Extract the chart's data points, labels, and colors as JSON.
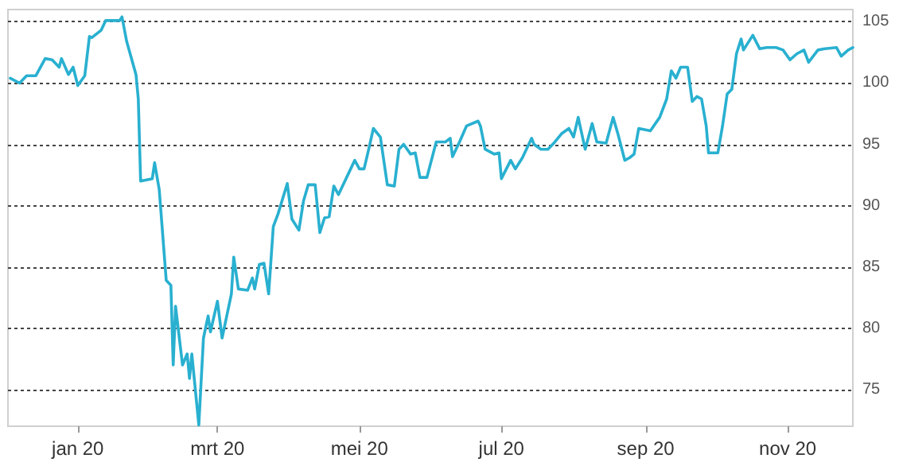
{
  "chart_data": {
    "type": "line",
    "marker": "none",
    "line_style": "solid",
    "grid": "y",
    "xlim": [
      "2019-12-02",
      "2020-11-29"
    ],
    "xticks": [
      {
        "value": "2020-01-01",
        "label": "jan 20"
      },
      {
        "value": "2020-03-01",
        "label": "mrt 20"
      },
      {
        "value": "2020-05-01",
        "label": "mei 20"
      },
      {
        "value": "2020-07-01",
        "label": "jul 20"
      },
      {
        "value": "2020-09-01",
        "label": "sep 20"
      },
      {
        "value": "2020-11-01",
        "label": "nov 20"
      }
    ],
    "ylim": [
      72,
      106
    ],
    "yticks": [
      75,
      80,
      85,
      90,
      95,
      100,
      105
    ],
    "x": [
      "2019-12-03",
      "2019-12-07",
      "2019-12-10",
      "2019-12-14",
      "2019-12-18",
      "2019-12-21",
      "2019-12-24",
      "2019-12-25",
      "2019-12-28",
      "2019-12-30",
      "2020-01-01",
      "2020-01-04",
      "2020-01-06",
      "2020-01-07",
      "2020-01-11",
      "2020-01-13",
      "2020-01-19",
      "2020-01-20",
      "2020-01-22",
      "2020-01-26",
      "2020-01-27",
      "2020-01-28",
      "2020-02-02",
      "2020-02-03",
      "2020-02-05",
      "2020-02-08",
      "2020-02-10",
      "2020-02-11",
      "2020-02-12",
      "2020-02-15",
      "2020-02-17",
      "2020-02-18",
      "2020-02-19",
      "2020-02-22",
      "2020-02-24",
      "2020-02-26",
      "2020-02-27",
      "2020-03-01",
      "2020-03-03",
      "2020-03-07",
      "2020-03-08",
      "2020-03-10",
      "2020-03-14",
      "2020-03-16",
      "2020-03-17",
      "2020-03-19",
      "2020-03-21",
      "2020-03-23",
      "2020-03-25",
      "2020-03-27",
      "2020-03-31",
      "2020-04-02",
      "2020-04-05",
      "2020-04-07",
      "2020-04-09",
      "2020-04-12",
      "2020-04-14",
      "2020-04-16",
      "2020-04-18",
      "2020-04-20",
      "2020-04-22",
      "2020-04-27",
      "2020-04-29",
      "2020-05-01",
      "2020-05-03",
      "2020-05-05",
      "2020-05-07",
      "2020-05-10",
      "2020-05-13",
      "2020-05-16",
      "2020-05-18",
      "2020-05-20",
      "2020-05-23",
      "2020-05-25",
      "2020-05-27",
      "2020-05-30",
      "2020-06-03",
      "2020-06-07",
      "2020-06-09",
      "2020-06-10",
      "2020-06-13",
      "2020-06-16",
      "2020-06-21",
      "2020-06-22",
      "2020-06-24",
      "2020-06-28",
      "2020-06-30",
      "2020-07-01",
      "2020-07-05",
      "2020-07-07",
      "2020-07-10",
      "2020-07-14",
      "2020-07-15",
      "2020-07-18",
      "2020-07-21",
      "2020-07-24",
      "2020-07-27",
      "2020-07-30",
      "2020-08-01",
      "2020-08-03",
      "2020-08-06",
      "2020-08-09",
      "2020-08-11",
      "2020-08-15",
      "2020-08-18",
      "2020-08-20",
      "2020-08-23",
      "2020-08-25",
      "2020-08-27",
      "2020-08-29",
      "2020-09-03",
      "2020-09-07",
      "2020-09-10",
      "2020-09-12",
      "2020-09-14",
      "2020-09-16",
      "2020-09-19",
      "2020-09-21",
      "2020-09-23",
      "2020-09-25",
      "2020-09-27",
      "2020-09-28",
      "2020-10-02",
      "2020-10-04",
      "2020-10-06",
      "2020-10-08",
      "2020-10-10",
      "2020-10-12",
      "2020-10-13",
      "2020-10-17",
      "2020-10-20",
      "2020-10-23",
      "2020-10-27",
      "2020-10-30",
      "2020-11-02",
      "2020-11-05",
      "2020-11-08",
      "2020-11-10",
      "2020-11-14",
      "2020-11-17",
      "2020-11-22",
      "2020-11-24",
      "2020-11-27",
      "2020-11-29"
    ],
    "series": [
      {
        "color": "#29b0d0",
        "values": [
          100.4,
          100.0,
          100.6,
          100.6,
          102.0,
          101.9,
          101.3,
          102.0,
          100.7,
          101.3,
          99.8,
          100.6,
          103.8,
          103.7,
          104.3,
          105.1,
          105.1,
          105.4,
          103.4,
          100.7,
          98.7,
          92.0,
          92.2,
          93.5,
          91.3,
          83.9,
          83.5,
          77.0,
          81.8,
          77.0,
          77.9,
          75.9,
          77.9,
          72.1,
          79.2,
          81.0,
          79.7,
          82.2,
          79.2,
          82.8,
          85.8,
          83.2,
          83.1,
          84.1,
          83.2,
          85.2,
          85.3,
          82.8,
          88.3,
          89.3,
          91.8,
          88.9,
          88.0,
          90.4,
          91.7,
          91.7,
          87.8,
          89.0,
          89.1,
          91.6,
          90.9,
          92.9,
          93.7,
          93.0,
          93.0,
          94.6,
          96.3,
          95.6,
          91.7,
          91.6,
          94.6,
          95.0,
          94.2,
          94.3,
          92.3,
          92.3,
          95.2,
          95.2,
          95.5,
          94.0,
          95.2,
          96.5,
          96.9,
          96.5,
          94.6,
          94.2,
          94.3,
          92.2,
          93.7,
          93.0,
          93.9,
          95.5,
          95.0,
          94.6,
          94.6,
          95.2,
          95.9,
          96.3,
          95.6,
          97.2,
          94.6,
          96.7,
          95.2,
          95.1,
          97.2,
          95.9,
          93.7,
          93.9,
          94.2,
          96.3,
          96.1,
          97.2,
          98.7,
          101.0,
          100.4,
          101.3,
          101.3,
          98.5,
          98.9,
          98.7,
          96.5,
          94.3,
          94.3,
          96.5,
          99.1,
          99.5,
          102.4,
          103.6,
          102.7,
          103.9,
          102.8,
          102.9,
          102.9,
          102.7,
          101.9,
          102.4,
          102.7,
          101.7,
          102.7,
          102.8,
          102.9,
          102.2,
          102.7,
          102.9
        ]
      }
    ]
  }
}
